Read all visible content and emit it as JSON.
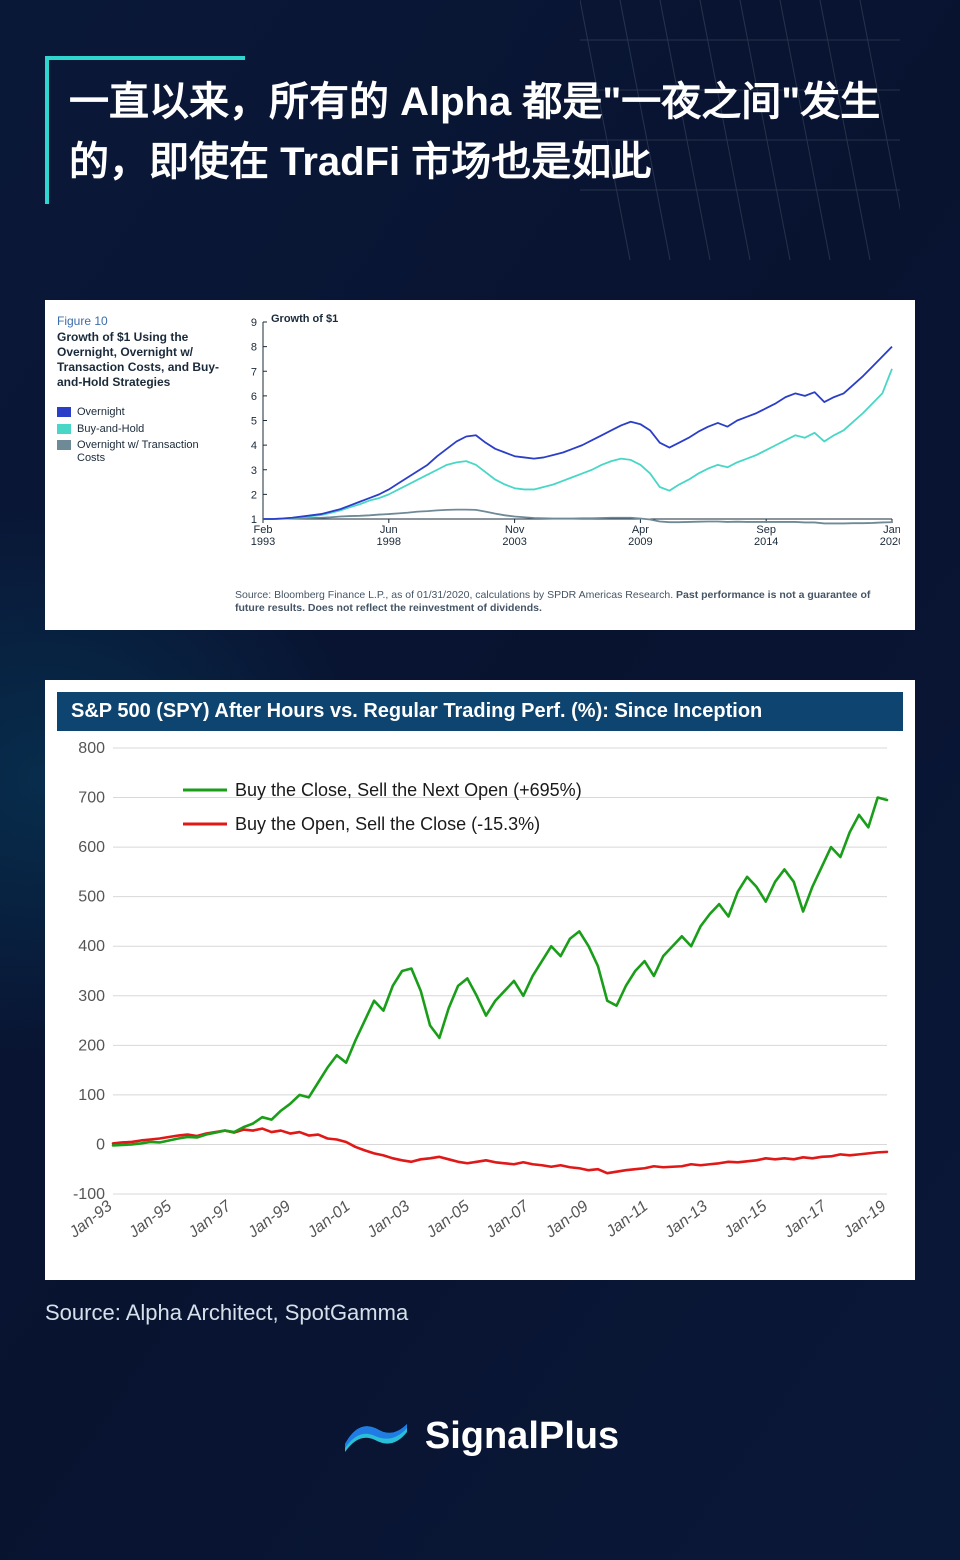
{
  "title": "一直以来，所有的 Alpha 都是\"一夜之间\"发生的，即使在 TradFi 市场也是如此",
  "source_line": "Source: Alpha Architect, SpotGamma",
  "brand": "SignalPlus",
  "chart1": {
    "figure_label": "Figure 10",
    "caption": "Growth of $1 Using the Overnight, Overnight w/ Transaction Costs, and Buy-and-Hold Strategies",
    "y_title": "Growth of $1",
    "ylim": [
      1,
      9
    ],
    "ytick_step": 1,
    "x_ticks": [
      "Feb\n1993",
      "Jun\n1998",
      "Nov\n2003",
      "Apr\n2009",
      "Sep\n2014",
      "Jan\n2020"
    ],
    "legend": [
      {
        "label": "Overnight",
        "color": "#2b3ec8"
      },
      {
        "label": "Buy-and-Hold",
        "color": "#48d7c6"
      },
      {
        "label": "Overnight w/ Transaction Costs",
        "color": "#6f8a97"
      }
    ],
    "series": {
      "overnight": [
        1.0,
        1.0,
        1.02,
        1.05,
        1.1,
        1.15,
        1.2,
        1.3,
        1.4,
        1.55,
        1.7,
        1.85,
        2.0,
        2.2,
        2.45,
        2.7,
        2.95,
        3.2,
        3.55,
        3.85,
        4.15,
        4.35,
        4.4,
        4.1,
        3.85,
        3.7,
        3.55,
        3.5,
        3.45,
        3.5,
        3.6,
        3.7,
        3.85,
        4.0,
        4.2,
        4.4,
        4.6,
        4.8,
        4.95,
        4.85,
        4.6,
        4.1,
        3.9,
        4.1,
        4.3,
        4.55,
        4.75,
        4.9,
        4.75,
        5.0,
        5.15,
        5.3,
        5.5,
        5.7,
        5.95,
        6.1,
        6.0,
        6.15,
        5.75,
        5.95,
        6.1,
        6.45,
        6.8,
        7.2,
        7.6,
        8.0
      ],
      "buy_hold": [
        1.0,
        1.0,
        1.02,
        1.04,
        1.08,
        1.12,
        1.16,
        1.25,
        1.35,
        1.48,
        1.6,
        1.75,
        1.85,
        2.0,
        2.2,
        2.4,
        2.6,
        2.8,
        3.0,
        3.2,
        3.3,
        3.35,
        3.2,
        2.9,
        2.6,
        2.4,
        2.25,
        2.2,
        2.2,
        2.3,
        2.4,
        2.55,
        2.7,
        2.85,
        3.0,
        3.2,
        3.35,
        3.45,
        3.4,
        3.2,
        2.85,
        2.3,
        2.15,
        2.4,
        2.6,
        2.85,
        3.05,
        3.2,
        3.1,
        3.3,
        3.45,
        3.6,
        3.8,
        4.0,
        4.2,
        4.4,
        4.3,
        4.5,
        4.15,
        4.4,
        4.6,
        4.95,
        5.3,
        5.7,
        6.1,
        7.1
      ],
      "overnight_tc": [
        1.0,
        1.0,
        1.01,
        1.02,
        1.03,
        1.04,
        1.05,
        1.07,
        1.1,
        1.12,
        1.13,
        1.15,
        1.18,
        1.2,
        1.23,
        1.26,
        1.3,
        1.32,
        1.35,
        1.37,
        1.38,
        1.38,
        1.37,
        1.3,
        1.22,
        1.15,
        1.1,
        1.07,
        1.04,
        1.03,
        1.02,
        1.02,
        1.02,
        1.03,
        1.03,
        1.04,
        1.05,
        1.05,
        1.05,
        1.02,
        0.98,
        0.9,
        0.87,
        0.87,
        0.88,
        0.89,
        0.9,
        0.9,
        0.88,
        0.89,
        0.88,
        0.88,
        0.88,
        0.88,
        0.88,
        0.88,
        0.86,
        0.86,
        0.82,
        0.82,
        0.82,
        0.83,
        0.83,
        0.84,
        0.86,
        0.87
      ]
    },
    "footer": "Source: Bloomberg Finance L.P., as of 01/31/2020, calculations by SPDR Americas Research. Past performance is not a guarantee of future results. Does not reflect the reinvestment of dividends.",
    "grid_color": "#bfc8cf",
    "background": "#ffffff",
    "line_width": 1.8
  },
  "chart2": {
    "title_bar": "S&P 500 (SPY) After Hours vs. Regular Trading Perf. (%): Since Inception",
    "ylim": [
      -100,
      800
    ],
    "ytick_step": 100,
    "x_ticks": [
      "Jan-93",
      "Jan-95",
      "Jan-97",
      "Jan-99",
      "Jan-01",
      "Jan-03",
      "Jan-05",
      "Jan-07",
      "Jan-09",
      "Jan-11",
      "Jan-13",
      "Jan-15",
      "Jan-17",
      "Jan-19"
    ],
    "legend": [
      {
        "label": "Buy the Close, Sell the Next Open (+695%)",
        "color": "#1a9e1a"
      },
      {
        "label": "Buy the Open, Sell the Close (-15.3%)",
        "color": "#e01818"
      }
    ],
    "series": {
      "green": [
        -2,
        -1,
        0,
        2,
        5,
        4,
        8,
        12,
        15,
        14,
        20,
        24,
        28,
        25,
        35,
        42,
        55,
        50,
        68,
        82,
        100,
        95,
        125,
        155,
        180,
        165,
        210,
        250,
        290,
        270,
        320,
        350,
        355,
        310,
        240,
        215,
        275,
        320,
        335,
        300,
        260,
        290,
        310,
        330,
        300,
        340,
        370,
        400,
        380,
        415,
        430,
        400,
        360,
        290,
        280,
        320,
        350,
        370,
        340,
        380,
        400,
        420,
        400,
        440,
        465,
        485,
        460,
        510,
        540,
        520,
        490,
        530,
        555,
        530,
        470,
        520,
        560,
        600,
        580,
        630,
        665,
        640,
        700,
        695
      ],
      "red": [
        2,
        4,
        5,
        8,
        10,
        12,
        15,
        18,
        20,
        17,
        22,
        25,
        28,
        24,
        30,
        28,
        32,
        25,
        28,
        22,
        25,
        18,
        20,
        12,
        10,
        5,
        -5,
        -12,
        -18,
        -22,
        -28,
        -32,
        -35,
        -30,
        -28,
        -25,
        -30,
        -35,
        -38,
        -35,
        -32,
        -36,
        -38,
        -40,
        -36,
        -40,
        -42,
        -45,
        -42,
        -46,
        -48,
        -52,
        -50,
        -58,
        -55,
        -52,
        -50,
        -48,
        -44,
        -46,
        -45,
        -44,
        -40,
        -42,
        -40,
        -38,
        -35,
        -36,
        -34,
        -32,
        -28,
        -30,
        -28,
        -30,
        -26,
        -28,
        -25,
        -24,
        -20,
        -22,
        -20,
        -18,
        -16,
        -15
      ]
    },
    "grid_color": "#d8d8d8",
    "background": "#ffffff",
    "line_width": 2.6
  }
}
